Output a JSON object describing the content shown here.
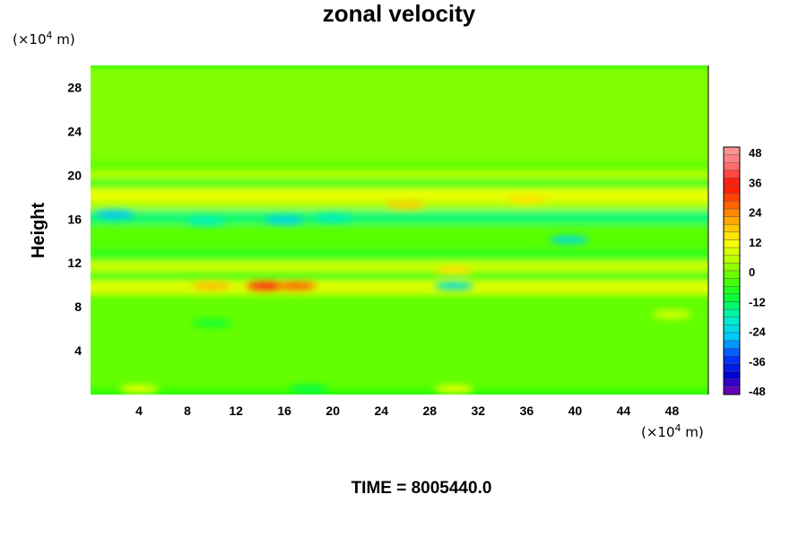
{
  "chart_data": {
    "type": "heatmap",
    "title": "zonal velocity",
    "ylabel": "Height",
    "x_unit_prefix": "(×10",
    "x_unit_exp": "4",
    "x_unit_suffix": " m)",
    "y_unit_prefix": "(×10",
    "y_unit_exp": "4",
    "y_unit_suffix": " m)",
    "xlim": [
      0,
      51
    ],
    "ylim": [
      0,
      30
    ],
    "x_ticks": [
      "4",
      "8",
      "12",
      "16",
      "20",
      "24",
      "28",
      "32",
      "36",
      "40",
      "44",
      "48"
    ],
    "y_ticks": [
      "4",
      "8",
      "12",
      "16",
      "20",
      "24",
      "28"
    ],
    "x_tick_values": [
      4,
      8,
      12,
      16,
      20,
      24,
      28,
      32,
      36,
      40,
      44,
      48
    ],
    "y_tick_values": [
      4,
      8,
      12,
      16,
      20,
      24,
      28
    ],
    "colorbar": {
      "ticks": [
        "48",
        "36",
        "24",
        "12",
        "0",
        "-12",
        "-24",
        "-36",
        "-48"
      ],
      "range": [
        -48,
        48
      ],
      "levels": 32,
      "colors": [
        "#7f00b2",
        "#0000d4",
        "#0040ff",
        "#00c8ff",
        "#00f0c8",
        "#00ff3c",
        "#4cff00",
        "#b4ff00",
        "#ffff00",
        "#ffb400",
        "#ff6000",
        "#ff1000",
        "#ff6e6e",
        "#ff9c9c"
      ]
    },
    "bands": [
      {
        "y": [
          0,
          0.8
        ],
        "value": -4
      },
      {
        "y": [
          0.8,
          9.2
        ],
        "value": -2
      },
      {
        "y": [
          9.2,
          10.4
        ],
        "value": 8
      },
      {
        "y": [
          10.4,
          11.2
        ],
        "value": -6
      },
      {
        "y": [
          11.2,
          12.2
        ],
        "value": 6
      },
      {
        "y": [
          12.2,
          13.2
        ],
        "value": -7
      },
      {
        "y": [
          13.2,
          15.6
        ],
        "value": -3
      },
      {
        "y": [
          15.6,
          16.8
        ],
        "value": -14
      },
      {
        "y": [
          16.8,
          17.6
        ],
        "value": 3
      },
      {
        "y": [
          17.6,
          18.8
        ],
        "value": 9
      },
      {
        "y": [
          18.8,
          19.6
        ],
        "value": -8
      },
      {
        "y": [
          19.6,
          20.4
        ],
        "value": 4
      },
      {
        "y": [
          20.4,
          21.2
        ],
        "value": -3
      },
      {
        "y": [
          21.2,
          30
        ],
        "value": 0
      }
    ],
    "features": [
      {
        "x": 14.5,
        "y": 9.9,
        "value": 34
      },
      {
        "x": 17,
        "y": 9.9,
        "value": 26
      },
      {
        "x": 10,
        "y": 9.9,
        "value": 18
      },
      {
        "x": 30,
        "y": 9.9,
        "value": -22
      },
      {
        "x": 16,
        "y": 15.9,
        "value": -24
      },
      {
        "x": 20,
        "y": 16.1,
        "value": -18
      },
      {
        "x": 9.5,
        "y": 15.8,
        "value": -18
      },
      {
        "x": 2,
        "y": 16.4,
        "value": -26
      },
      {
        "x": 39.5,
        "y": 14.1,
        "value": -22
      },
      {
        "x": 26,
        "y": 17.3,
        "value": 16
      },
      {
        "x": 36,
        "y": 17.8,
        "value": 14
      },
      {
        "x": 30,
        "y": 11.3,
        "value": 14
      },
      {
        "x": 4,
        "y": 0.5,
        "value": 10
      },
      {
        "x": 30,
        "y": 0.5,
        "value": 10
      },
      {
        "x": 18,
        "y": 0.5,
        "value": -12
      },
      {
        "x": 48,
        "y": 7.3,
        "value": 8
      },
      {
        "x": 10,
        "y": 6.5,
        "value": -10
      }
    ]
  },
  "footer": {
    "time_label": "TIME = 8005440.0"
  }
}
